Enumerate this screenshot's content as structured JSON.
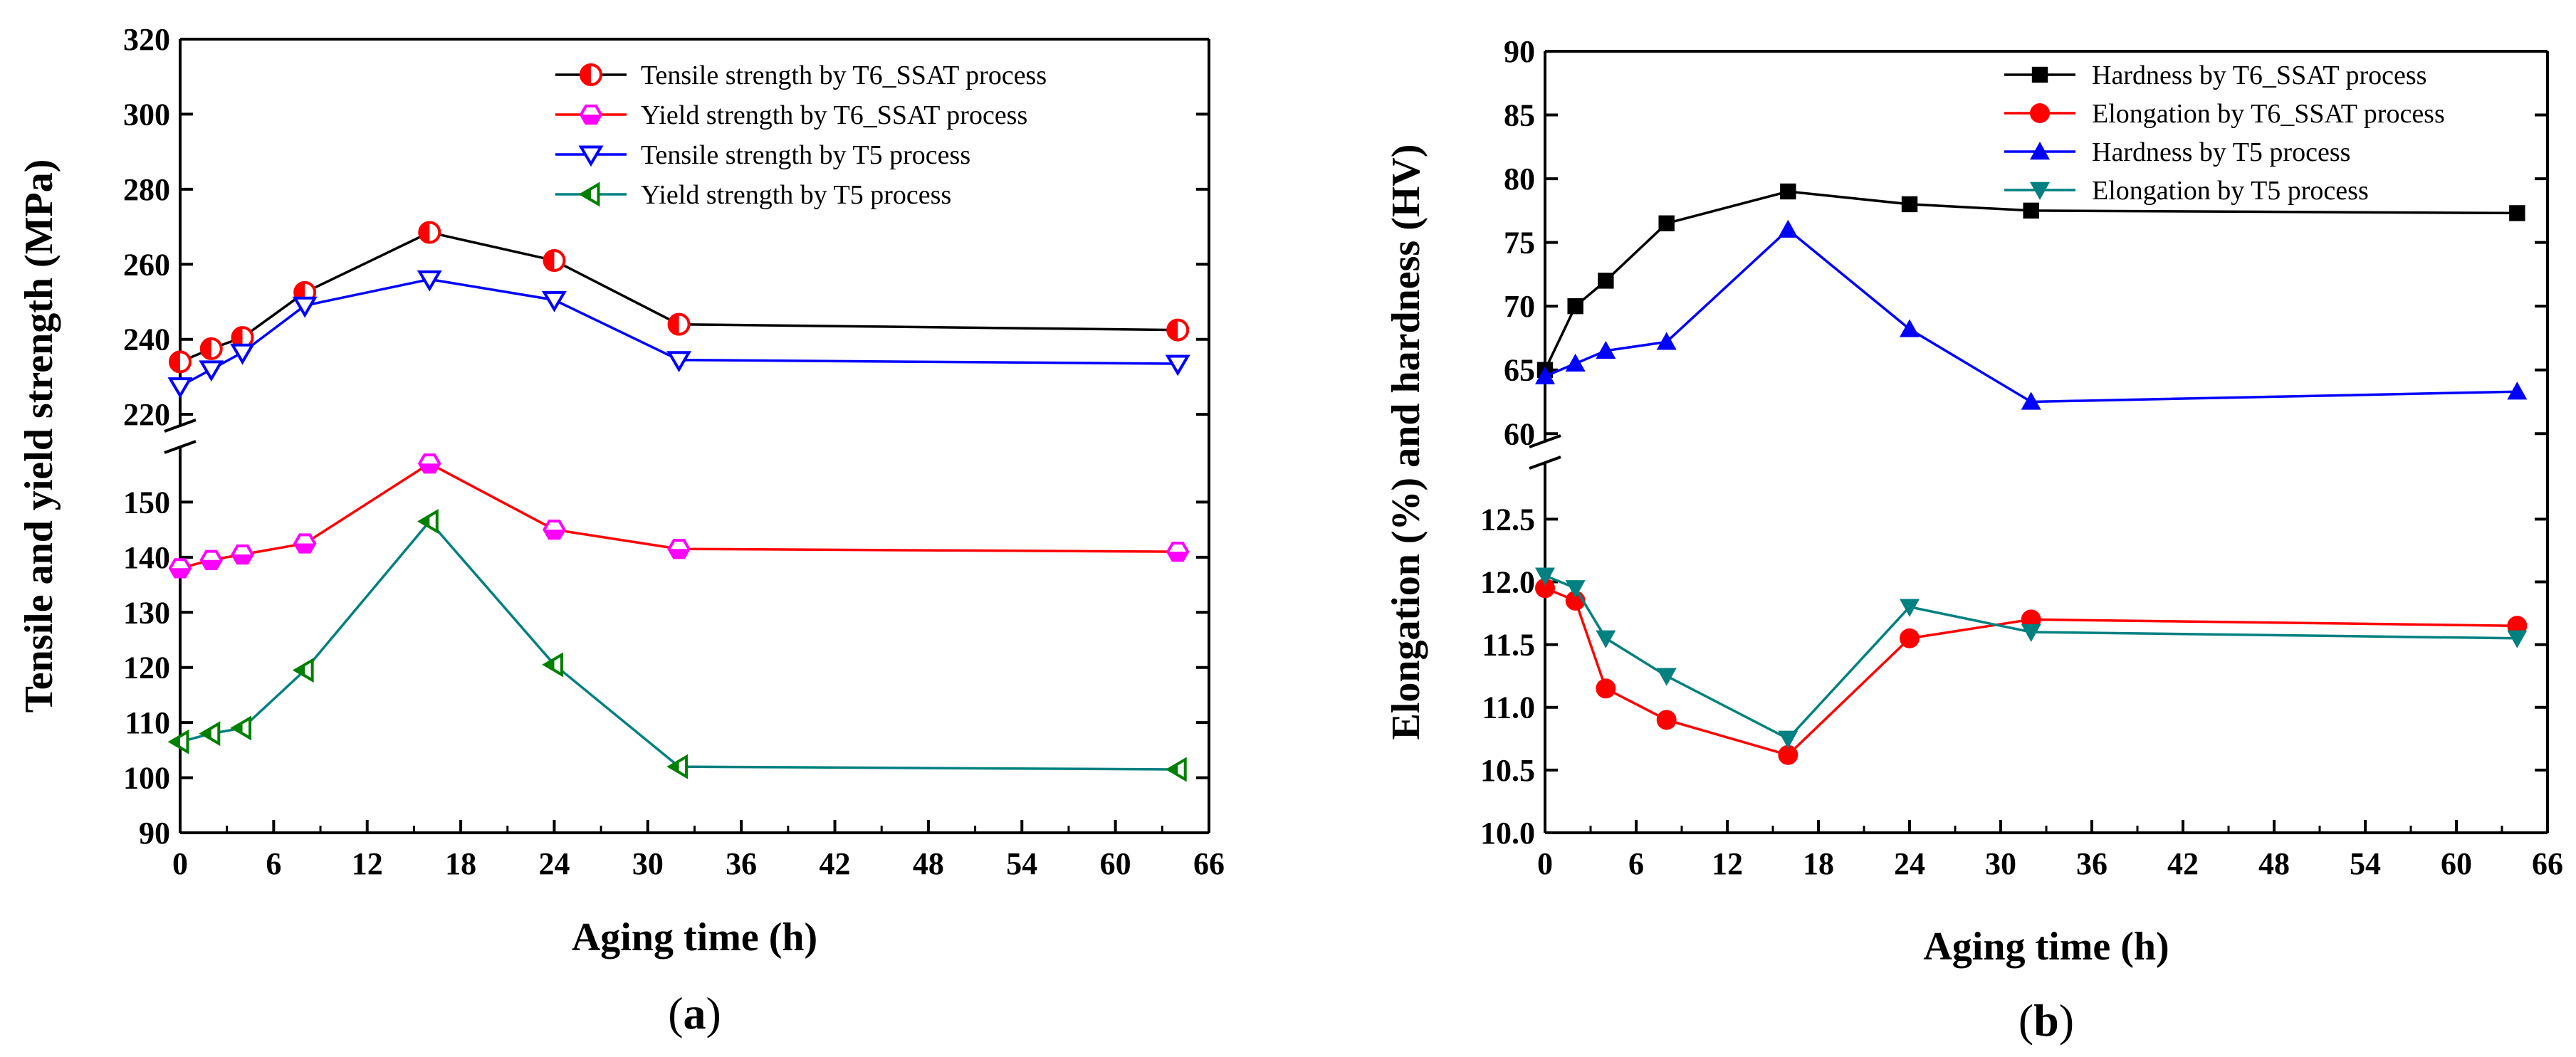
{
  "chart_data": [
    {
      "type": "line",
      "panel_label": "a",
      "xlabel": "Aging time (h)",
      "ylabel": "Tensile and yield strength (MPa)",
      "xlim": [
        0,
        66
      ],
      "xticks": [
        0,
        6,
        12,
        18,
        24,
        30,
        36,
        42,
        48,
        54,
        60,
        66
      ],
      "y_axis_break": true,
      "ylim_lower": [
        90,
        160
      ],
      "yticks_lower": [
        90,
        100,
        110,
        120,
        130,
        140,
        150
      ],
      "ylim_upper": [
        217,
        320
      ],
      "yticks_upper": [
        220,
        240,
        260,
        280,
        300,
        320
      ],
      "legend_position": "top-right",
      "series": [
        {
          "name": "Tensile strength by T6_SSAT process",
          "segment": "upper",
          "color": "#ff0000",
          "line_color": "#000000",
          "marker": "half-circle",
          "x": [
            0,
            2,
            4,
            8,
            16,
            24,
            32,
            64
          ],
          "values": [
            234,
            237.5,
            240.5,
            252.5,
            268.5,
            261,
            244,
            242.5
          ]
        },
        {
          "name": "Yield strength by T6_SSAT process",
          "segment": "lower",
          "color": "#ff00ff",
          "line_color": "#ff0000",
          "marker": "hexagon",
          "x": [
            0,
            2,
            4,
            8,
            16,
            24,
            32,
            64
          ],
          "values": [
            138,
            139.5,
            140.5,
            142.5,
            157,
            145,
            141.5,
            141
          ]
        },
        {
          "name": "Tensile strength by T5 process",
          "segment": "upper",
          "color": "#0000ff",
          "line_color": "#0000ff",
          "marker": "triangle-down-open",
          "x": [
            0,
            2,
            4,
            8,
            16,
            24,
            32,
            64
          ],
          "values": [
            227.5,
            232,
            236.5,
            249,
            256,
            250.5,
            234.5,
            233.5
          ]
        },
        {
          "name": "Yield strength by T5 process",
          "segment": "lower",
          "color": "#008000",
          "line_color": "#008080",
          "marker": "triangle-left-half",
          "x": [
            0,
            2,
            4,
            8,
            16,
            24,
            32,
            64
          ],
          "values": [
            106.5,
            108,
            109,
            119.5,
            146.5,
            120.5,
            102,
            101.5
          ]
        }
      ]
    },
    {
      "type": "line",
      "panel_label": "b",
      "xlabel": "Aging time (h)",
      "ylabel": "Elongation (%) and hardness (HV)",
      "xlim": [
        0,
        66
      ],
      "xticks": [
        0,
        6,
        12,
        18,
        24,
        30,
        36,
        42,
        48,
        54,
        60,
        66
      ],
      "y_axis_break": true,
      "ylim_lower": [
        10.0,
        12.95
      ],
      "yticks_lower": [
        "10.0",
        "10.5",
        "11.0",
        "11.5",
        "12.0",
        "12.5"
      ],
      "ylim_upper": [
        59.4,
        90
      ],
      "yticks_upper": [
        60,
        65,
        70,
        75,
        80,
        85,
        90
      ],
      "legend_position": "top-right",
      "series": [
        {
          "name": "Hardness by T6_SSAT process",
          "segment": "upper",
          "color": "#000000",
          "line_color": "#000000",
          "marker": "square",
          "x": [
            0,
            2,
            4,
            8,
            16,
            24,
            32,
            64
          ],
          "values": [
            65,
            70,
            72,
            76.5,
            79,
            78,
            77.5,
            77.3
          ]
        },
        {
          "name": "Elongation by T6_SSAT process",
          "segment": "lower",
          "color": "#ff0000",
          "line_color": "#ff0000",
          "marker": "circle",
          "x": [
            0,
            2,
            4,
            8,
            16,
            24,
            32,
            64
          ],
          "values": [
            11.95,
            11.85,
            11.15,
            10.9,
            10.62,
            11.55,
            11.7,
            11.65
          ]
        },
        {
          "name": "Hardness by T5 process",
          "segment": "upper",
          "color": "#0000ff",
          "line_color": "#0000ff",
          "marker": "triangle-up",
          "x": [
            0,
            2,
            4,
            8,
            16,
            24,
            32,
            64
          ],
          "values": [
            64.5,
            65.5,
            66.5,
            67.2,
            76,
            68.2,
            62.5,
            63.3
          ]
        },
        {
          "name": "Elongation by T5 process",
          "segment": "lower",
          "color": "#008080",
          "line_color": "#008080",
          "marker": "triangle-down",
          "x": [
            0,
            2,
            4,
            8,
            16,
            24,
            32,
            64
          ],
          "values": [
            12.05,
            11.95,
            11.55,
            11.25,
            10.75,
            11.8,
            11.6,
            11.55
          ]
        }
      ]
    }
  ]
}
